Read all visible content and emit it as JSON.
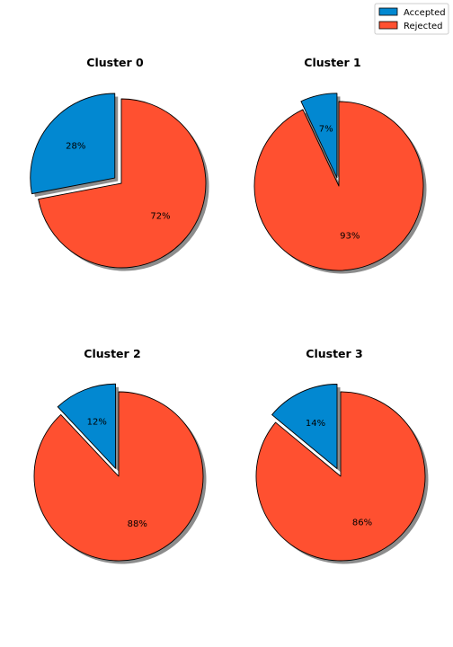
{
  "chart_data": {
    "type": "pie",
    "legend": {
      "placement": "top-right",
      "entries": [
        {
          "label": "Accepted",
          "color": "#0288d1"
        },
        {
          "label": "Rejected",
          "color": "#ff5030"
        }
      ]
    },
    "charts": [
      {
        "title": "Cluster 0",
        "labels": [
          "Accepted",
          "Rejected"
        ],
        "values": [
          28,
          72
        ],
        "display": [
          "28%",
          "72%"
        ]
      },
      {
        "title": "Cluster 1",
        "labels": [
          "Accepted",
          "Rejected"
        ],
        "values": [
          7,
          93
        ],
        "display": [
          "7%",
          "93%"
        ]
      },
      {
        "title": "Cluster 2",
        "labels": [
          "Accepted",
          "Rejected"
        ],
        "values": [
          12,
          88
        ],
        "display": [
          "12%",
          "88%"
        ]
      },
      {
        "title": "Cluster 3",
        "labels": [
          "Accepted",
          "Rejected"
        ],
        "values": [
          14,
          86
        ],
        "display": [
          "14%",
          "86%"
        ]
      }
    ],
    "explode": "Accepted",
    "shadow": true,
    "start": "top",
    "direction": "counterclockwise"
  }
}
